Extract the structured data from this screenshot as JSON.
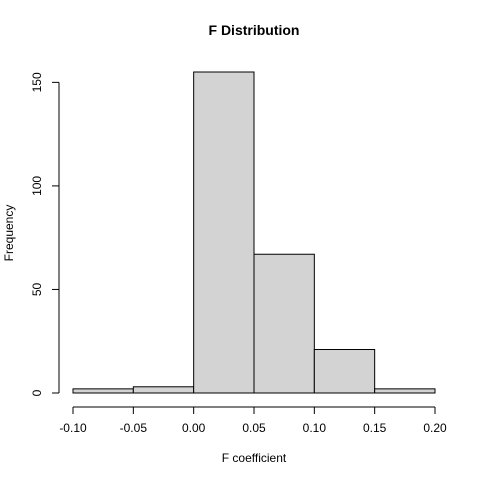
{
  "chart_data": {
    "type": "bar",
    "title": "F Distribution",
    "xlabel": "F coefficient",
    "ylabel": "Frequency",
    "bins": [
      {
        "start": -0.1,
        "end": -0.05,
        "count": 2
      },
      {
        "start": -0.05,
        "end": 0.0,
        "count": 3
      },
      {
        "start": 0.0,
        "end": 0.05,
        "count": 155
      },
      {
        "start": 0.05,
        "end": 0.1,
        "count": 67
      },
      {
        "start": 0.1,
        "end": 0.15,
        "count": 21
      },
      {
        "start": 0.15,
        "end": 0.2,
        "count": 2
      }
    ],
    "xticks": [
      {
        "value": -0.1,
        "label": "-0.10"
      },
      {
        "value": -0.05,
        "label": "-0.05"
      },
      {
        "value": 0.0,
        "label": "0.00"
      },
      {
        "value": 0.05,
        "label": "0.05"
      },
      {
        "value": 0.1,
        "label": "0.10"
      },
      {
        "value": 0.15,
        "label": "0.15"
      },
      {
        "value": 0.2,
        "label": "0.20"
      }
    ],
    "yticks": [
      {
        "value": 0,
        "label": "0"
      },
      {
        "value": 50,
        "label": "50"
      },
      {
        "value": 100,
        "label": "100"
      },
      {
        "value": 150,
        "label": "150"
      }
    ],
    "xlim": [
      -0.1,
      0.2
    ],
    "ylim": [
      0,
      155
    ],
    "bar_color": "#d3d3d3",
    "grid": false
  }
}
